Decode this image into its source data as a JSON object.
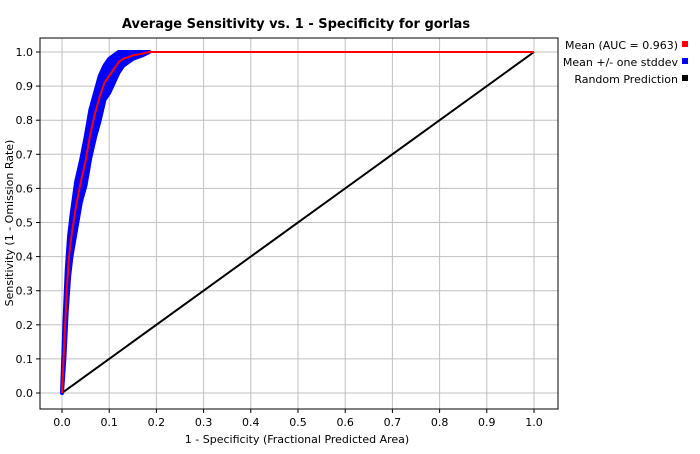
{
  "chart_data": {
    "type": "line",
    "title": "Average Sensitivity vs. 1 - Specificity for gorlas",
    "xlabel": "1 - Specificity (Fractional Predicted Area)",
    "ylabel": "Sensitivity (1 - Omission Rate)",
    "xlim": [
      0,
      1
    ],
    "ylim": [
      0,
      1
    ],
    "xticks": [
      "0.0",
      "0.1",
      "0.2",
      "0.3",
      "0.4",
      "0.5",
      "0.6",
      "0.7",
      "0.8",
      "0.9",
      "1.0"
    ],
    "yticks": [
      "0.0",
      "0.1",
      "0.2",
      "0.3",
      "0.4",
      "0.5",
      "0.6",
      "0.7",
      "0.8",
      "0.9",
      "1.0"
    ],
    "grid": true,
    "legend_position": "right",
    "series": [
      {
        "name": "Mean (AUC = 0.963)",
        "color": "#ff0000",
        "x": [
          0.0,
          0.005,
          0.01,
          0.015,
          0.02,
          0.03,
          0.04,
          0.05,
          0.06,
          0.07,
          0.08,
          0.09,
          0.1,
          0.11,
          0.12,
          0.13,
          0.15,
          0.17,
          0.185,
          0.5,
          1.0
        ],
        "y": [
          0.0,
          0.15,
          0.3,
          0.4,
          0.46,
          0.55,
          0.62,
          0.68,
          0.76,
          0.82,
          0.87,
          0.91,
          0.93,
          0.95,
          0.97,
          0.98,
          0.99,
          0.995,
          1.0,
          1.0,
          1.0
        ]
      },
      {
        "name": "Mean +/- one stddev",
        "color": "#0000ff",
        "x": [
          0.0,
          0.005,
          0.01,
          0.015,
          0.02,
          0.03,
          0.04,
          0.05,
          0.06,
          0.07,
          0.08,
          0.09,
          0.1,
          0.11,
          0.12,
          0.13,
          0.15,
          0.17,
          0.185
        ],
        "upper": [
          0.0,
          0.2,
          0.36,
          0.46,
          0.52,
          0.62,
          0.68,
          0.75,
          0.83,
          0.88,
          0.93,
          0.96,
          0.98,
          0.99,
          1.0,
          1.0,
          1.0,
          1.0,
          1.0
        ],
        "lower": [
          0.0,
          0.1,
          0.24,
          0.34,
          0.4,
          0.48,
          0.56,
          0.61,
          0.69,
          0.75,
          0.8,
          0.86,
          0.88,
          0.91,
          0.94,
          0.96,
          0.98,
          0.99,
          1.0
        ]
      },
      {
        "name": "Random Prediction",
        "color": "#000000",
        "x": [
          0,
          1
        ],
        "y": [
          0,
          1
        ]
      }
    ]
  }
}
